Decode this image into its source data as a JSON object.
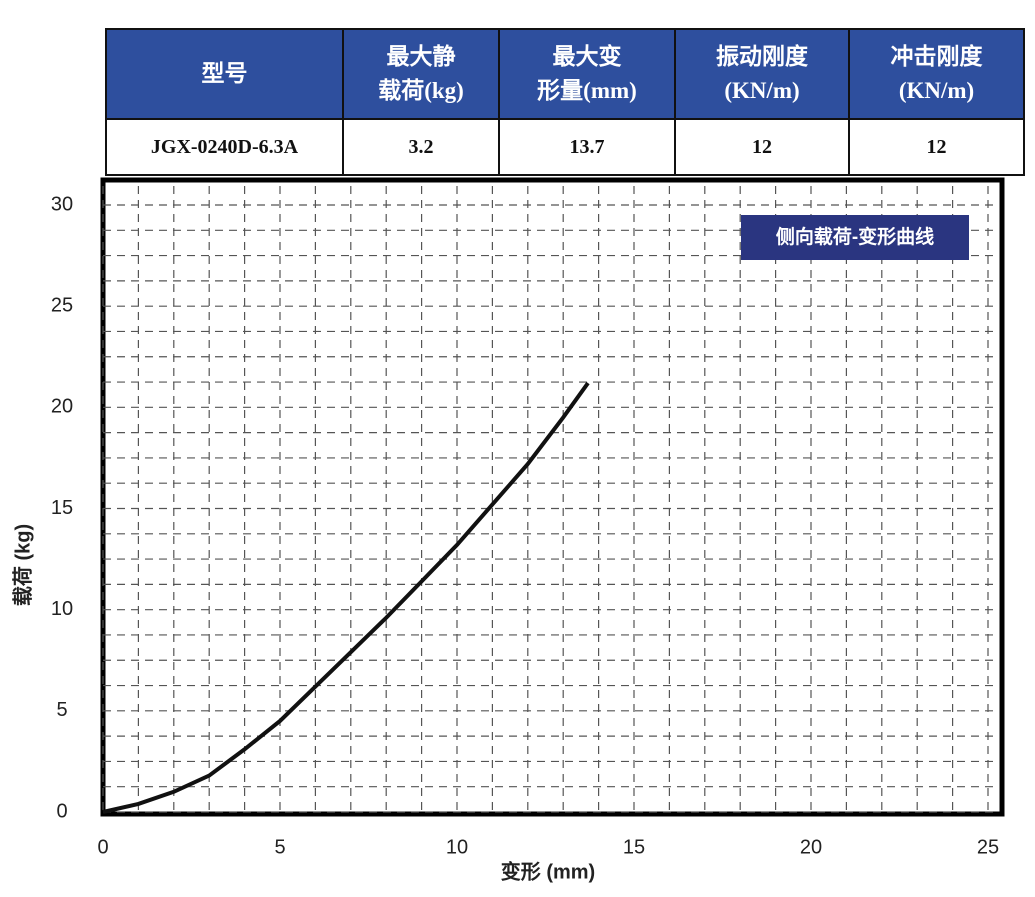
{
  "table": {
    "header": [
      "型号",
      "最大静\n载荷(kg)",
      "最大变\n形量(mm)",
      "振动刚度\n(KN/m)",
      "冲击刚度\n(KN/m)"
    ],
    "rows": [
      [
        "JGX-0240D-6.3A",
        "3.2",
        "13.7",
        "12",
        "12"
      ]
    ]
  },
  "chart_data": {
    "type": "line",
    "x_label": "变形 (mm)",
    "y_label": "载荷 (kg)",
    "x": [
      0,
      1,
      2,
      3,
      4,
      5,
      6,
      7,
      8,
      9,
      10,
      11,
      12,
      13,
      13.7
    ],
    "series": [
      {
        "name": "侧向载荷-变形曲线",
        "color": "#111111",
        "values": [
          0,
          0.4,
          1.0,
          1.8,
          3.1,
          4.5,
          6.2,
          7.9,
          9.6,
          11.4,
          13.2,
          15.2,
          17.2,
          19.5,
          21.2
        ]
      }
    ],
    "xlim": [
      0,
      25
    ],
    "xticks": [
      0,
      5,
      10,
      15,
      20,
      25
    ],
    "ylim": [
      0,
      30
    ],
    "yticks": [
      0,
      5,
      10,
      15,
      20,
      25,
      30
    ],
    "grid": true,
    "legend": "upper right"
  }
}
